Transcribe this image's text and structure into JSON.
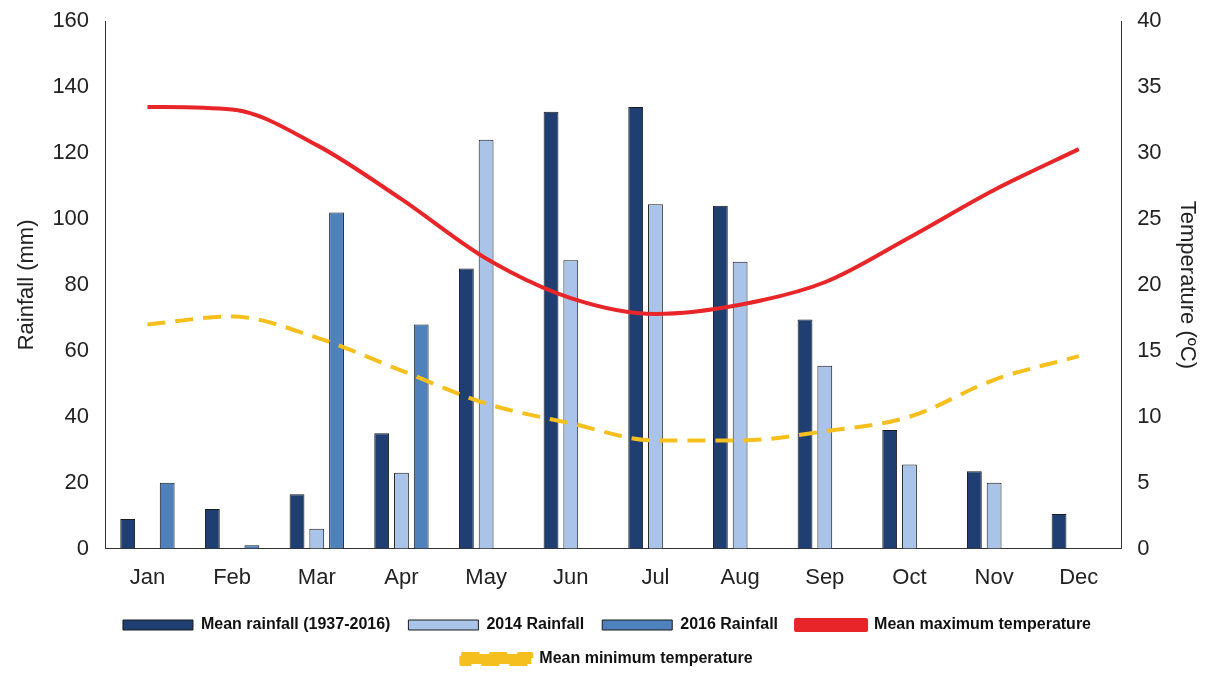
{
  "chart_data": {
    "type": "bar",
    "categories": [
      "Jan",
      "Feb",
      "Mar",
      "Apr",
      "May",
      "Jun",
      "Jul",
      "Aug",
      "Sep",
      "Oct",
      "Nov",
      "Dec"
    ],
    "ylabel": "Rainfall (mm)",
    "y2label": "Temperature (ºC)",
    "ylim": [
      0,
      160
    ],
    "yticks": [
      0,
      20,
      40,
      60,
      80,
      100,
      120,
      140,
      160
    ],
    "y2lim": [
      0,
      40
    ],
    "y2ticks": [
      0,
      5,
      10,
      15,
      20,
      25,
      30,
      35,
      40
    ],
    "grid": false,
    "legend": "bottom",
    "series": [
      {
        "name": "Mean rainfall (1937-2016)",
        "color": "#1f3f73",
        "values": [
          9,
          12,
          16.5,
          35,
          85,
          132.5,
          134,
          104,
          69.5,
          36,
          23.5,
          10.5
        ]
      },
      {
        "name": "2014 Rainfall",
        "color": "#a9c4e8",
        "values": [
          null,
          null,
          6,
          23,
          124,
          87.5,
          104.5,
          87,
          55.5,
          25.5,
          20,
          null
        ]
      },
      {
        "name": "2016 Rainfall",
        "color": "#4f81bd",
        "values": [
          20,
          1,
          102,
          68,
          null,
          null,
          null,
          null,
          null,
          null,
          null,
          null
        ]
      },
      {
        "name": "Mean maximum temperature",
        "type": "line",
        "axis": "y2",
        "color": "#e8262a",
        "line_style": "solid",
        "values": [
          33.5,
          33.3,
          30.6,
          26.5,
          22,
          19,
          17.8,
          18.5,
          20.2,
          23.6,
          27.2,
          30.3
        ]
      },
      {
        "name": "Mean minimum temperature",
        "type": "line",
        "axis": "y2",
        "color": "#f5bf1d",
        "line_style": "dashed",
        "values": [
          17,
          17.6,
          16,
          13.5,
          11,
          9.5,
          8.2,
          8.2,
          8.9,
          10,
          12.8,
          14.6
        ]
      }
    ]
  }
}
